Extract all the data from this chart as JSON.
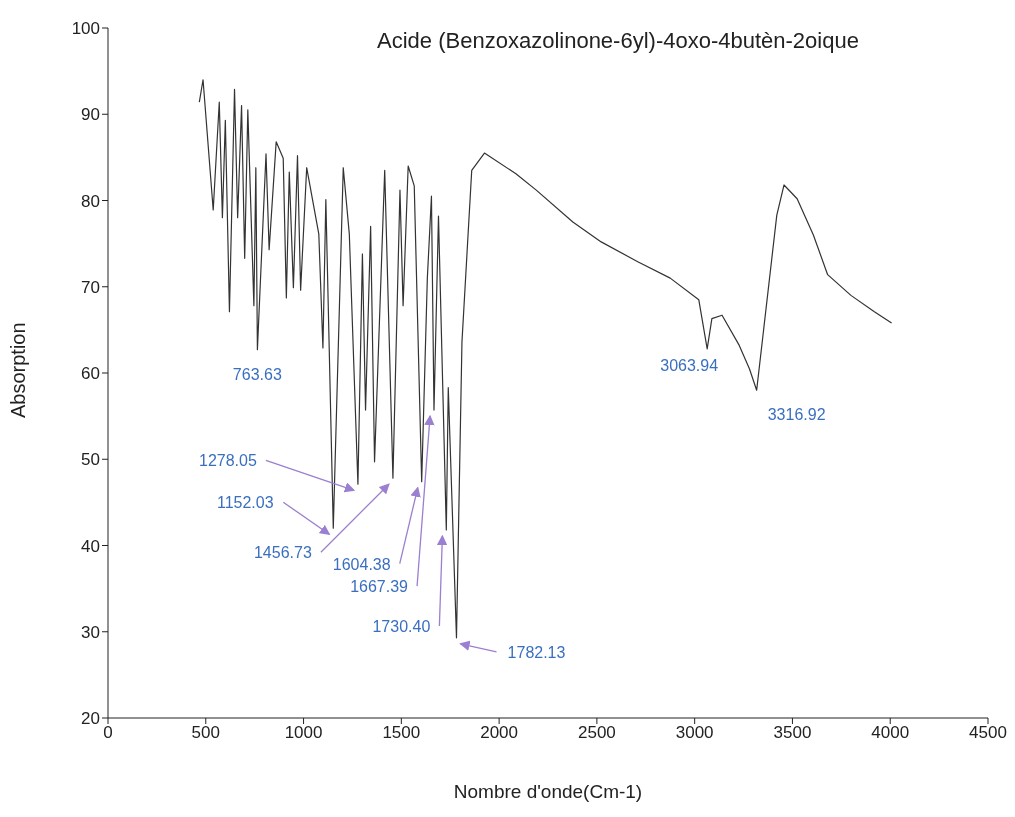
{
  "chart_data": {
    "type": "line",
    "title": "Acide (Benzoxazolinone-6yl)-4oxo-4butèn-2oique",
    "xlabel": "Nombre d'onde(Cm-1)",
    "ylabel": "Absorption",
    "xlim": [
      0,
      4500
    ],
    "xticks": [
      0,
      500,
      1000,
      1500,
      2000,
      2500,
      3000,
      3500,
      4000,
      4500
    ],
    "ylim": [
      20,
      100
    ],
    "yticks": [
      20,
      30,
      40,
      50,
      60,
      70,
      80,
      90,
      100
    ],
    "grid": false,
    "legend": false,
    "series": [
      {
        "color": "#333333",
        "x": [
          467,
          486,
          538,
          569,
          585,
          600,
          621,
          647,
          663,
          683,
          699,
          715,
          746,
          756,
          764,
          808,
          824,
          860,
          896,
          912,
          927,
          948,
          969,
          985,
          1016,
          1078,
          1099,
          1114,
          1152,
          1203,
          1234,
          1278,
          1301,
          1317,
          1343,
          1363,
          1415,
          1457,
          1493,
          1509,
          1535,
          1566,
          1604,
          1633,
          1654,
          1667,
          1690,
          1730,
          1740,
          1782,
          1810,
          1860,
          1925,
          2086,
          2190,
          2377,
          2522,
          2709,
          2875,
          3021,
          3064,
          3088,
          3140,
          3228,
          3280,
          3317,
          3420,
          3457,
          3524,
          3607,
          3680,
          3799,
          3919,
          4007
        ],
        "values": [
          91.4,
          94.0,
          78.9,
          91.4,
          78.0,
          89.3,
          67.1,
          92.9,
          78.0,
          91.0,
          73.3,
          90.5,
          67.8,
          83.8,
          62.7,
          85.4,
          74.3,
          86.8,
          84.9,
          68.7,
          83.3,
          69.9,
          85.2,
          69.6,
          83.8,
          76.1,
          62.9,
          80.1,
          42.0,
          83.8,
          76.1,
          47.1,
          73.8,
          55.7,
          77.0,
          49.7,
          83.5,
          47.8,
          81.2,
          67.8,
          84.0,
          81.7,
          47.4,
          71.0,
          80.5,
          55.7,
          78.2,
          41.8,
          58.3,
          29.3,
          63.6,
          83.5,
          85.5,
          83.1,
          81.2,
          77.5,
          75.2,
          72.9,
          71.0,
          68.5,
          62.8,
          66.3,
          66.7,
          63.2,
          60.5,
          58.0,
          78.3,
          81.8,
          80.2,
          76.0,
          71.4,
          69.0,
          67.1,
          65.8
        ]
      }
    ],
    "annotations": [
      {
        "text": "763.63",
        "x": 763.63,
        "y": 62.7
      },
      {
        "text": "1278.05",
        "x": 1278.05,
        "y": 47.1
      },
      {
        "text": "1152.03",
        "x": 1152.03,
        "y": 42.0
      },
      {
        "text": "1456.73",
        "x": 1456.73,
        "y": 47.8
      },
      {
        "text": "1604.38",
        "x": 1604.38,
        "y": 47.4
      },
      {
        "text": "1667.39",
        "x": 1667.39,
        "y": 55.7
      },
      {
        "text": "1730.40",
        "x": 1730.4,
        "y": 41.8
      },
      {
        "text": "1782.13",
        "x": 1782.13,
        "y": 29.3
      },
      {
        "text": "3063.94",
        "x": 3063.94,
        "y": 62.8
      },
      {
        "text": "3316.92",
        "x": 3316.92,
        "y": 58.0
      }
    ]
  }
}
